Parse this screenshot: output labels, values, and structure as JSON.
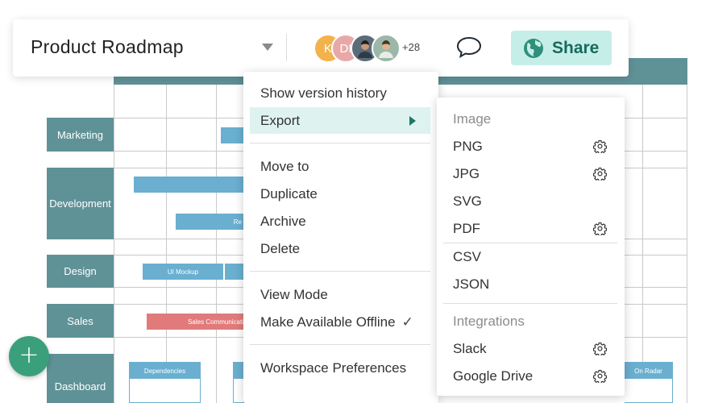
{
  "toolbar": {
    "title": "Product Roadmap",
    "avatars": [
      {
        "initial": "K",
        "color": "#f2b24c"
      },
      {
        "initial": "DI",
        "color": "#e9a8a8"
      },
      {
        "initial": "",
        "color": "#5b6b7a"
      },
      {
        "initial": "",
        "color": "#9bb7a8"
      }
    ],
    "avatar_overflow": "+28",
    "share_label": "Share"
  },
  "roadmap": {
    "lanes": [
      {
        "label": "Marketing"
      },
      {
        "label": "Development"
      },
      {
        "label": "Design"
      },
      {
        "label": "Sales"
      },
      {
        "label": "Dashboard"
      }
    ],
    "bars": {
      "ui_mockup": "UI Mockup",
      "sales_comm": "Sales Communicati",
      "dev_partial": "Re"
    },
    "cards": {
      "dependencies": "Dependencies",
      "on_radar": "On Radar"
    }
  },
  "menu": {
    "items": [
      {
        "label": "Show version history"
      },
      {
        "label": "Export"
      },
      {
        "label": "Move to"
      },
      {
        "label": "Duplicate"
      },
      {
        "label": "Archive"
      },
      {
        "label": "Delete"
      },
      {
        "label": "View Mode"
      },
      {
        "label": "Make Available Offline"
      },
      {
        "label": "Workspace Preferences"
      }
    ],
    "offline_check": "✓"
  },
  "export_menu": {
    "image_heading": "Image",
    "items": [
      {
        "label": "PNG",
        "gear": true
      },
      {
        "label": "JPG",
        "gear": true
      },
      {
        "label": "SVG",
        "gear": false
      },
      {
        "label": "PDF",
        "gear": true
      },
      {
        "label": "CSV",
        "gear": false
      },
      {
        "label": "JSON",
        "gear": false
      }
    ],
    "integrations_heading": "Integrations",
    "integrations": [
      {
        "label": "Slack",
        "gear": true
      },
      {
        "label": "Google Drive",
        "gear": true
      }
    ]
  },
  "fab": {
    "label": "+"
  },
  "colors": {
    "accent": "#5f9297",
    "share_bg": "#c6eee9",
    "share_text": "#176a5c",
    "highlight": "#def3ef",
    "bar_blue": "#6aafcf",
    "bar_red": "#e17b7b",
    "fab": "#3aa07b"
  }
}
